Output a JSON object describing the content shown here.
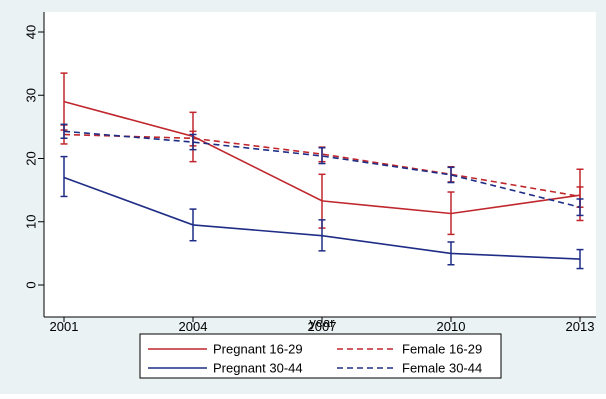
{
  "chart_data": {
    "type": "line",
    "title": "",
    "xlabel": "year",
    "ylabel": "",
    "x": [
      2001,
      2004,
      2007,
      2010,
      2013
    ],
    "xlim": [
      2001,
      2013
    ],
    "ylim": [
      0,
      40
    ],
    "x_ticks": [
      "2001",
      "2004",
      "2007",
      "2010",
      "2013"
    ],
    "y_ticks": [
      "0",
      "10",
      "20",
      "30",
      "40"
    ],
    "grid": false,
    "legend_position": "bottom",
    "error_bars": true,
    "series": [
      {
        "name": "Pregnant 16-29",
        "color": "#c0272d",
        "dashed": false,
        "values": [
          29.0,
          23.5,
          13.3,
          11.3,
          14.2
        ],
        "lower": [
          24.5,
          19.5,
          9.0,
          8.0,
          10.2
        ],
        "upper": [
          33.5,
          27.3,
          17.5,
          14.7,
          18.3
        ]
      },
      {
        "name": "Female 16-29",
        "color": "#c0272d",
        "dashed": true,
        "values": [
          23.8,
          23.2,
          20.7,
          17.5,
          14.0
        ],
        "lower": [
          22.3,
          22.0,
          19.5,
          16.3,
          12.3
        ],
        "upper": [
          25.3,
          24.3,
          21.8,
          18.7,
          15.5
        ]
      },
      {
        "name": "Pregnant 30-44",
        "color": "#1f2d86",
        "dashed": false,
        "values": [
          17.0,
          9.5,
          7.8,
          5.0,
          4.1
        ],
        "lower": [
          14.0,
          7.0,
          5.4,
          3.2,
          2.6
        ],
        "upper": [
          20.3,
          12.0,
          10.3,
          6.8,
          5.6
        ]
      },
      {
        "name": "Female 30-44",
        "color": "#1f2d86",
        "dashed": true,
        "values": [
          24.3,
          22.6,
          20.4,
          17.4,
          12.3
        ],
        "lower": [
          23.2,
          21.4,
          19.2,
          16.2,
          11.0
        ],
        "upper": [
          25.4,
          23.8,
          21.7,
          18.6,
          13.6
        ]
      }
    ],
    "legend_order": [
      "Pregnant 16-29",
      "Female 16-29",
      "Pregnant 30-44",
      "Female 30-44"
    ],
    "colors": {
      "background": "#eaf2f3",
      "plot_area": "#ffffff",
      "axis": "#000000"
    }
  }
}
